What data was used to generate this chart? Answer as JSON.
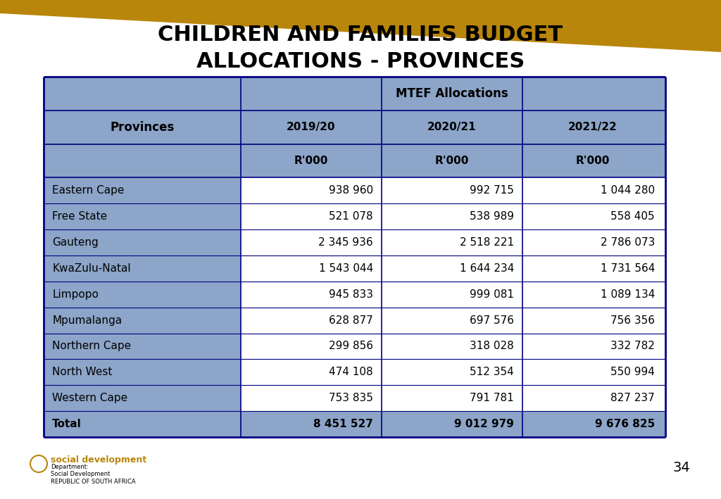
{
  "title_line1": "CHILDREN AND FAMILIES BUDGET",
  "title_line2": "ALLOCATIONS - PROVINCES",
  "header_bg": "#8CA5C8",
  "header_text_color": "#000000",
  "total_row_bg": "#8CA5C8",
  "total_row_text_color": "#000000",
  "data_row_bg": "#ffffff",
  "data_row_bg_alt": "#ffffff",
  "table_border_color": "#000080",
  "col_header1": "MTEF Allocations",
  "col_subheader_provinces": "Provinces",
  "col_subheader_years": [
    "2019/20",
    "2020/21",
    "2021/22"
  ],
  "col_unit": "R'000",
  "provinces": [
    "Eastern Cape",
    "Free State",
    "Gauteng",
    "KwaZulu-Natal",
    "Limpopo",
    "Mpumalanga",
    "Northern Cape",
    "North West",
    "Western Cape",
    "Total"
  ],
  "values_2019": [
    "938 960",
    "521 078",
    "2 345 936",
    "1 543 044",
    "945 833",
    "628 877",
    "299 856",
    "474 108",
    "753 835",
    "8 451 527"
  ],
  "values_2020": [
    "992 715",
    "538 989",
    "2 518 221",
    "1 644 234",
    "999 081",
    "697 576",
    "318 028",
    "512 354",
    "791 781",
    "9 012 979"
  ],
  "values_2021": [
    "1 044 280",
    "558 405",
    "2 786 073",
    "1 731 564",
    "1 089 134",
    "756 356",
    "332 782",
    "550 994",
    "827 237",
    "9 676 825"
  ],
  "bg_color": "#ffffff",
  "top_bar_color": "#B8860B",
  "page_number": "34",
  "logo_text_main": "social development",
  "logo_text_dept": "Department:\nSocial Development\nREPUBLIC OF SOUTH AFRICA"
}
